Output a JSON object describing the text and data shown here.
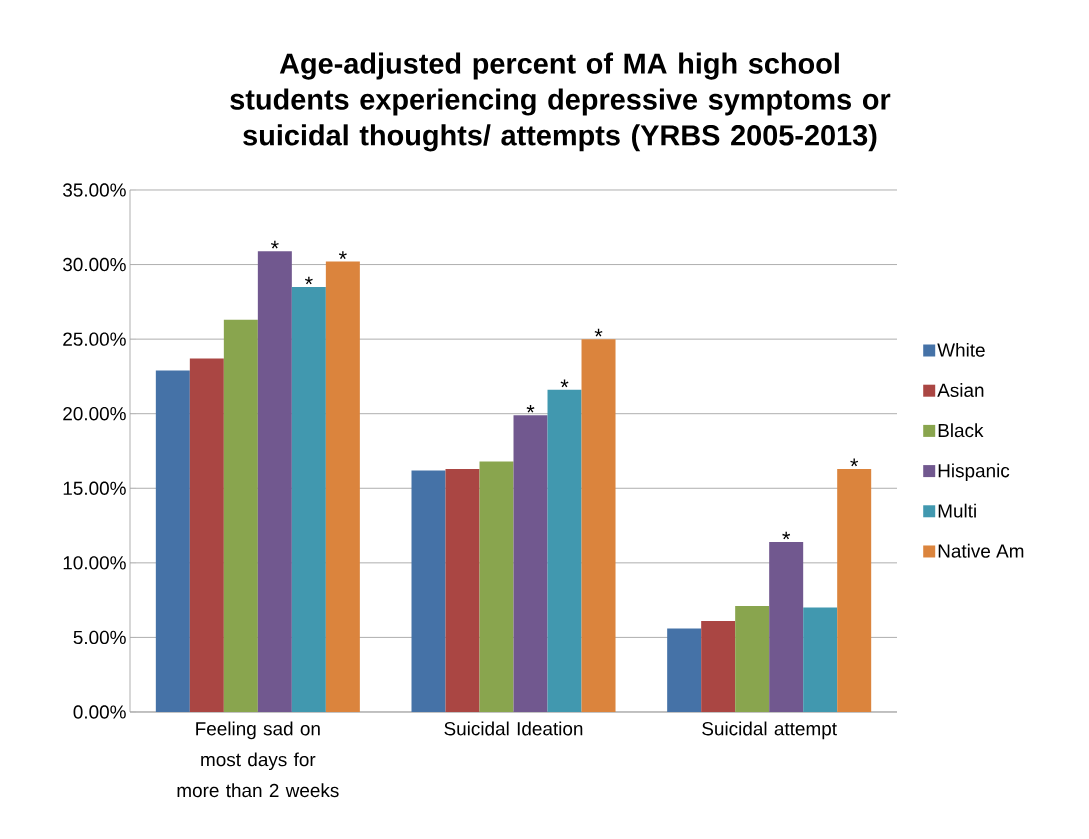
{
  "chart_data": {
    "type": "bar",
    "title": "Age-adjusted percent of MA high school students experiencing depressive symptoms or suicidal thoughts/ attempts (YRBS 2005-2013)",
    "categories": [
      "Feeling sad on most days for more than 2 weeks",
      "Suicidal Ideation",
      "Suicidal attempt"
    ],
    "series": [
      {
        "name": "White",
        "color": "#4572a7",
        "values": [
          22.9,
          16.2,
          5.6
        ]
      },
      {
        "name": "Asian",
        "color": "#aa4643",
        "values": [
          23.7,
          16.3,
          6.1
        ]
      },
      {
        "name": "Black",
        "color": "#89a54e",
        "values": [
          26.3,
          16.8,
          7.1
        ]
      },
      {
        "name": "Hispanic",
        "color": "#71588f",
        "values": [
          30.9,
          19.9,
          11.4
        ],
        "value_labels": [
          "*",
          "*",
          "*"
        ]
      },
      {
        "name": "Multi",
        "color": "#4198af",
        "values": [
          28.5,
          21.6,
          7.0
        ],
        "value_labels": [
          "*",
          "*",
          null
        ]
      },
      {
        "name": "Native Am",
        "color": "#db843d",
        "values": [
          30.2,
          25.0,
          16.3
        ],
        "value_labels": [
          "*",
          "*",
          "*"
        ]
      }
    ],
    "ylim": [
      0,
      35
    ],
    "yticks": [
      {
        "value": 0,
        "label": "0.00%"
      },
      {
        "value": 5,
        "label": "5.00%"
      },
      {
        "value": 10,
        "label": "10.00%"
      },
      {
        "value": 15,
        "label": "15.00%"
      },
      {
        "value": 20,
        "label": "20.00%"
      },
      {
        "value": 25,
        "label": "25.00%"
      },
      {
        "value": 30,
        "label": "30.00%"
      },
      {
        "value": 35,
        "label": "35.00%"
      }
    ],
    "grid": "y",
    "legend": "right"
  }
}
